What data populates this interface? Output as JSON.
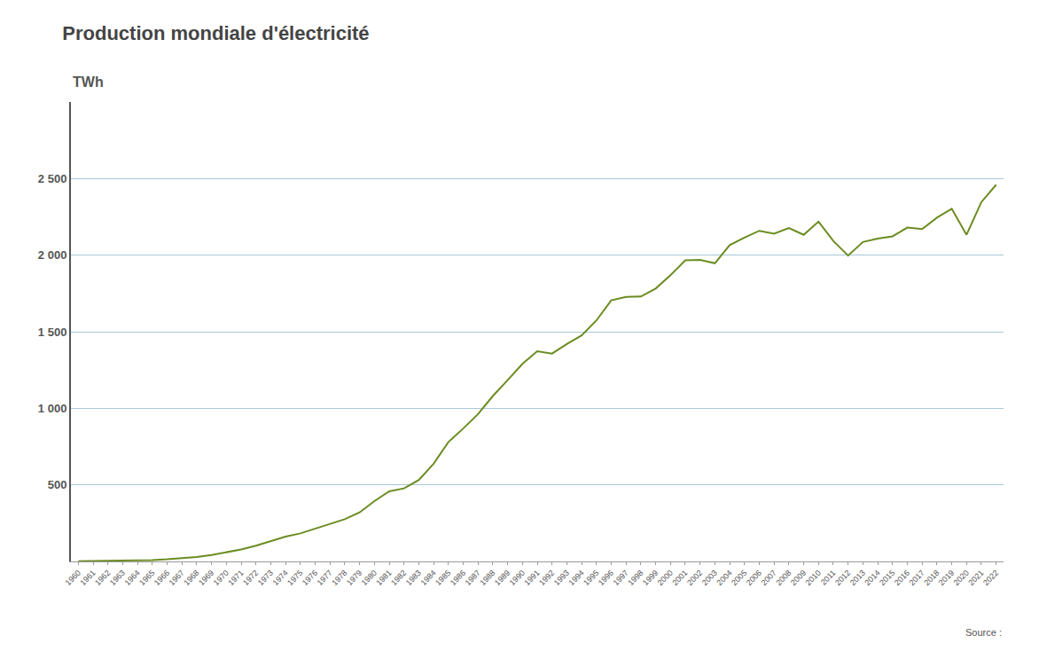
{
  "chart_data": {
    "type": "line",
    "title": "Production mondiale d'électricité",
    "subtitle": "TWh",
    "annotations": [
      "Source :"
    ],
    "x": [
      1960,
      1961,
      1962,
      1963,
      1964,
      1965,
      1966,
      1967,
      1968,
      1969,
      1970,
      1971,
      1972,
      1973,
      1974,
      1975,
      1976,
      1977,
      1978,
      1979,
      1980,
      1981,
      1982,
      1983,
      1984,
      1985,
      1986,
      1987,
      1988,
      1989,
      1990,
      1991,
      1992,
      1993,
      1994,
      1995,
      1996,
      1997,
      1998,
      1999,
      2000,
      2001,
      2002,
      2003,
      2004,
      2005,
      2006,
      2007,
      2008,
      2009,
      2010,
      2011,
      2012,
      2013,
      2014,
      2015,
      2016,
      2017,
      2018,
      2019,
      2020,
      2021,
      2022
    ],
    "values": [
      2,
      3,
      4,
      5,
      7,
      9,
      14,
      20,
      29,
      42,
      58,
      78,
      103,
      131,
      162,
      183,
      213,
      246,
      276,
      320,
      394,
      458,
      477,
      532,
      638,
      780,
      868,
      962,
      1080,
      1184,
      1290,
      1372,
      1357,
      1420,
      1476,
      1574,
      1705,
      1727,
      1730,
      1782,
      1869,
      1966,
      1969,
      1947,
      2066,
      2115,
      2159,
      2140,
      2177,
      2133,
      2219,
      2093,
      1997,
      2086,
      2108,
      2123,
      2180,
      2170,
      2245,
      2303,
      2133,
      2346,
      2460
    ],
    "color": "#6b8c21",
    "xlim": [
      1959.5,
      2022.5
    ],
    "xticks": [
      1960,
      1961,
      1962,
      1963,
      1964,
      1965,
      1966,
      1967,
      1968,
      1969,
      1970,
      1971,
      1972,
      1973,
      1974,
      1975,
      1976,
      1977,
      1978,
      1979,
      1980,
      1981,
      1982,
      1983,
      1984,
      1985,
      1986,
      1987,
      1988,
      1989,
      1990,
      1991,
      1992,
      1993,
      1994,
      1995,
      1996,
      1997,
      1998,
      1999,
      2000,
      2001,
      2002,
      2003,
      2004,
      2005,
      2006,
      2007,
      2008,
      2009,
      2010,
      2011,
      2012,
      2013,
      2014,
      2015,
      2016,
      2017,
      2018,
      2019,
      2020,
      2021,
      2022
    ],
    "ylim": [
      0,
      3000
    ],
    "yticks": [
      500,
      {
        "value": 1000,
        "label": "1 000"
      },
      {
        "value": 1500,
        "label": "1 500"
      },
      {
        "value": 2000,
        "label": "2 000"
      },
      {
        "value": 2500,
        "label": "2 500"
      }
    ],
    "grid": true
  }
}
